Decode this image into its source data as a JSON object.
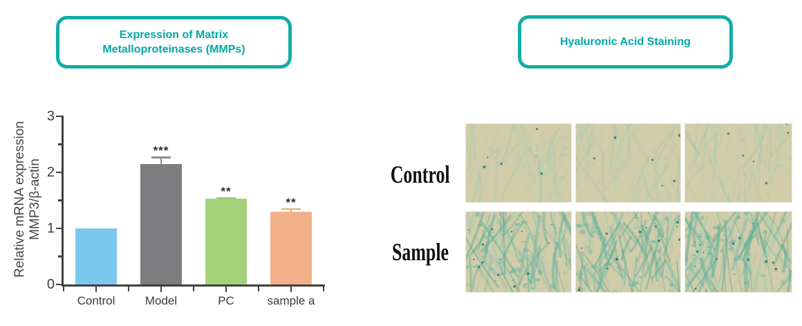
{
  "figure": {
    "accent_color": "#12ada7",
    "title_text_color": "#00a8a4",
    "left_title_line1": "Expression of Matrix",
    "left_title_line2": "Metalloproteinases (MMPs)",
    "right_title": "Hyaluronic Acid Staining"
  },
  "chart_data": {
    "type": "bar",
    "title": "Expression of Matrix Metalloproteinases (MMPs)",
    "categories": [
      "Control",
      "Model",
      "PC",
      "sample a"
    ],
    "values": [
      1.0,
      2.15,
      1.53,
      1.3
    ],
    "errors": [
      0,
      0.13,
      0.03,
      0.06
    ],
    "significance": [
      "",
      "***",
      "**",
      "**"
    ],
    "bar_colors": [
      "#7cc7ee",
      "#7d7d7f",
      "#a5d37b",
      "#f3b189"
    ],
    "error_colors": [
      "#8f8f8f",
      "#8f8f8f",
      "#9cc973",
      "#f0a87c"
    ],
    "ylabel_line1": "Relative mRNA expression",
    "ylabel_line2": "MMP3/β-actin",
    "xlabel": "",
    "ylim": [
      0,
      3
    ],
    "yticks": [
      0,
      1,
      2,
      3
    ],
    "yticks_minor": [
      0.5,
      1.5,
      2.5
    ],
    "grid": false,
    "legend_position": "none"
  },
  "staining_panel": {
    "title": "Hyaluronic Acid Staining",
    "rows": [
      {
        "label": "Control",
        "stain_intensity": "light",
        "image_count": 3
      },
      {
        "label": "Sample",
        "stain_intensity": "strong",
        "image_count": 3
      }
    ],
    "micrograph_colors": {
      "background": "#d3cca9",
      "stain_light": "#9ccbb4",
      "stain_strong": "#5fb4a0",
      "speck_dark": "#1c6b5e"
    }
  }
}
